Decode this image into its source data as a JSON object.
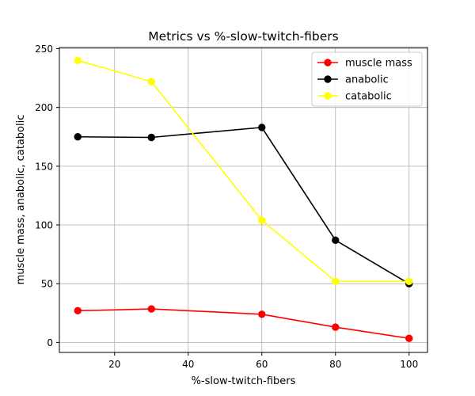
{
  "chart_data": {
    "type": "line",
    "title": "Metrics vs %-slow-twitch-fibers",
    "xlabel": "%-slow-twitch-fibers",
    "ylabel": "muscle mass, anabolic, catabolic",
    "x": [
      10,
      30,
      60,
      80,
      100
    ],
    "xlim": [
      5,
      105
    ],
    "ylim": [
      -8.5,
      251
    ],
    "xticks": [
      20,
      40,
      60,
      80,
      100
    ],
    "yticks": [
      0,
      50,
      100,
      150,
      200,
      250
    ],
    "grid": true,
    "legend_position": "top-right",
    "marker": "circle",
    "series": [
      {
        "name": "muscle mass",
        "color": "#ff0000",
        "values": [
          27,
          28.5,
          24,
          13,
          3.5
        ]
      },
      {
        "name": "anabolic",
        "color": "#000000",
        "values": [
          175,
          174.5,
          183,
          87,
          50
        ]
      },
      {
        "name": "catabolic",
        "color": "#ffff00",
        "values": [
          240,
          222,
          104,
          52,
          52
        ]
      }
    ]
  }
}
